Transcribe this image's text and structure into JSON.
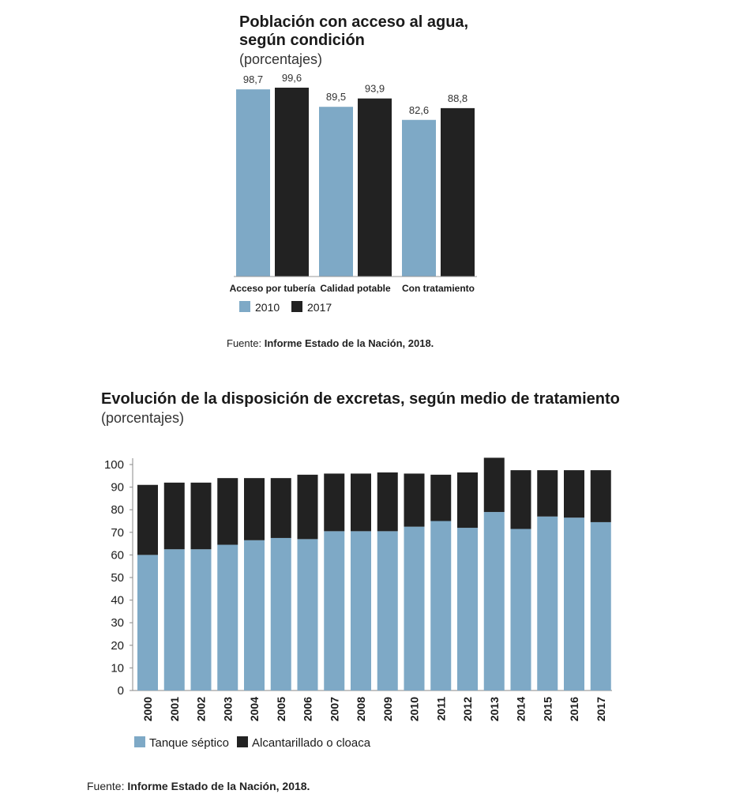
{
  "chart_data": [
    {
      "type": "bar",
      "title": "Población con acceso al agua,",
      "title_line2": "según condición",
      "subtitle": "(porcentajes)",
      "categories": [
        "Acceso por tubería",
        "Calidad potable",
        "Con tratamiento"
      ],
      "series": [
        {
          "name": "2010",
          "values": [
            98.7,
            89.5,
            82.6
          ],
          "labels": [
            "98,7",
            "89,5",
            "82,6"
          ],
          "color": "#7ea9c6"
        },
        {
          "name": "2017",
          "values": [
            99.6,
            93.9,
            88.8
          ],
          "labels": [
            "99,6",
            "93,9",
            "88,8"
          ],
          "color": "#222222"
        }
      ],
      "ylim": [
        0,
        100
      ],
      "legend": "bottom-left",
      "source_label": "Fuente:",
      "source_text": "Informe Estado de la Nación, 2018."
    },
    {
      "type": "bar",
      "stacked": true,
      "title": "Evolución de la disposición de excretas, según medio de tratamiento",
      "subtitle": "(porcentajes)",
      "categories": [
        "2000",
        "2001",
        "2002",
        "2003",
        "2004",
        "2005",
        "2006",
        "2007",
        "2008",
        "2009",
        "2010",
        "2011",
        "2012",
        "2013",
        "2014",
        "2015",
        "2016",
        "2017"
      ],
      "series": [
        {
          "name": "Tanque séptico",
          "values": [
            60,
            62.5,
            62.5,
            64.5,
            66.5,
            67.5,
            67,
            70.5,
            70.5,
            70.5,
            72.5,
            75,
            72,
            79,
            71.5,
            77,
            76.5,
            74.5
          ],
          "color": "#7ea9c6"
        },
        {
          "name": "Alcantarillado o cloaca",
          "values": [
            31,
            29.5,
            29.5,
            29.5,
            27.5,
            26.5,
            28.5,
            25.5,
            25.5,
            26,
            23.5,
            20.5,
            24.5,
            24,
            26,
            20.5,
            21,
            23
          ],
          "color": "#222222"
        }
      ],
      "yticks": [
        "0",
        "10",
        "20",
        "30",
        "40",
        "50",
        "60",
        "70",
        "80",
        "90",
        "100"
      ],
      "ylim": [
        0,
        100
      ],
      "legend": "bottom-left",
      "source_label": "Fuente:",
      "source_text": "Informe Estado de la Nación, 2018."
    }
  ]
}
